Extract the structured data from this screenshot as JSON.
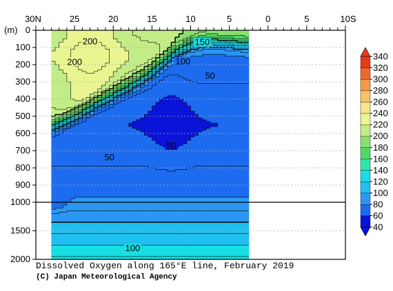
{
  "chart_data": {
    "type": "heatmap",
    "title": "Dissolved Oxygen along 165°E line, February 2019",
    "credit": "(C) Japan Meteorological Agency",
    "x_axis": {
      "ticks": [
        "30N",
        "25",
        "20",
        "15",
        "10",
        "5",
        "0",
        "5",
        "10S"
      ],
      "values": [
        30,
        25,
        20,
        15,
        10,
        5,
        0,
        -5,
        -10
      ],
      "range": [
        30,
        -10
      ]
    },
    "y_axis": {
      "label": "(m)",
      "upper_ticks": [
        "0",
        "100",
        "200",
        "300",
        "400",
        "500",
        "600",
        "700",
        "800",
        "900",
        "1000"
      ],
      "lower_ticks": [
        "1500",
        "2000"
      ],
      "upper_range": [
        0,
        1000
      ],
      "lower_range": [
        1000,
        2000
      ]
    },
    "data_extent": {
      "lat_north": 28,
      "lat_south": 3
    },
    "contour_labels": [
      {
        "text": "200",
        "lat": 23,
        "depth": 65
      },
      {
        "text": "200",
        "lat": 25,
        "depth": 185
      },
      {
        "text": "150",
        "lat": 8.5,
        "depth": 70
      },
      {
        "text": "100",
        "lat": 11,
        "depth": 182
      },
      {
        "text": "50",
        "lat": 7.5,
        "depth": 265
      },
      {
        "text": "50",
        "lat": 12.5,
        "depth": 672
      },
      {
        "text": "50",
        "lat": 20.5,
        "depth": 740
      },
      {
        "text": "100",
        "lat": 17.5,
        "depth": 1810
      }
    ],
    "colorbar": {
      "levels": [
        40,
        60,
        80,
        100,
        120,
        140,
        160,
        180,
        200,
        220,
        240,
        260,
        280,
        300,
        320,
        340
      ],
      "labels": [
        "340",
        "320",
        "300",
        "280",
        "260",
        "240",
        "220",
        "200",
        "180",
        "160",
        "140",
        "120",
        "100",
        "80",
        "60",
        "40"
      ],
      "colors": [
        "#0a14d8",
        "#1d6cef",
        "#2b97f2",
        "#1fc0f0",
        "#18dfe3",
        "#2fe6a8",
        "#4fd868",
        "#8adf70",
        "#c2ec86",
        "#e9f591",
        "#f7e58a",
        "#f6c466",
        "#f39a48",
        "#ee6a2c",
        "#e63c1c"
      ]
    }
  }
}
